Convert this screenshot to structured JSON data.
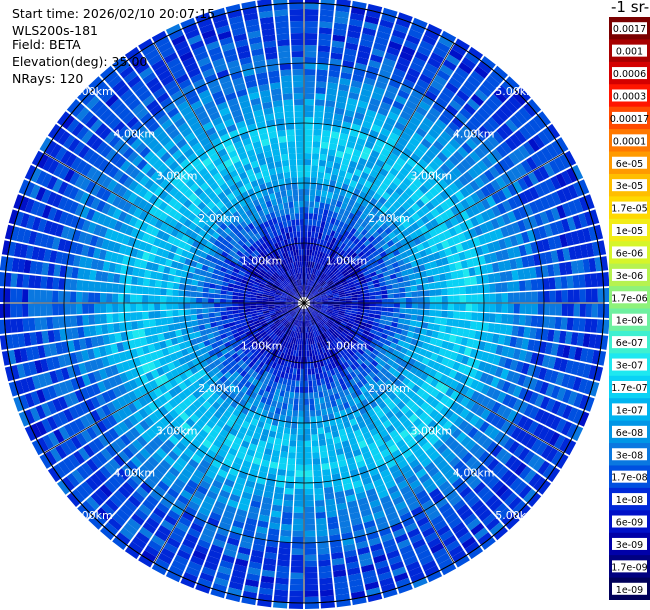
{
  "header": {
    "start_time": "Start time: 2026/02/10 20:07:15",
    "instrument": "WLS200s-181",
    "field": "Field: BETA",
    "elevation": "Elevation(deg): 35.00",
    "nrays": "NRays: 120"
  },
  "colorbar": {
    "title": "-1 sr-",
    "labels": [
      "0.0017",
      "0.001",
      "0.0006",
      "0.0003",
      "0.00017",
      "0.0001",
      "6e-05",
      "3e-05",
      "1.7e-05",
      "1e-05",
      "6e-06",
      "3e-06",
      "1.7e-06",
      "1e-06",
      "6e-07",
      "3e-07",
      "1.7e-07",
      "1e-07",
      "6e-08",
      "3e-08",
      "1.7e-08",
      "1e-08",
      "6e-09",
      "3e-09",
      "1.7e-09",
      "1e-09"
    ],
    "colors": [
      "#7a0000",
      "#a80000",
      "#d40000",
      "#ff1500",
      "#ff4a00",
      "#ff7800",
      "#ff9a00",
      "#ffbe00",
      "#ffd800",
      "#f2ec18",
      "#d6f52a",
      "#b6f250",
      "#8ef27a",
      "#6ef0a0",
      "#3ef0d0",
      "#1ee8f0",
      "#0ad2f5",
      "#00b4f0",
      "#0096e6",
      "#0a78e0",
      "#0050e0",
      "#0028d8",
      "#0010c8",
      "#0000a8",
      "#000080",
      "#00005a"
    ]
  },
  "range_labels": [
    "1.00km",
    "2.00km",
    "3.00km",
    "4.00km",
    "5.00km"
  ],
  "chart_data": {
    "type": "heatmap",
    "projection": "polar (PPI scan)",
    "field": "BETA",
    "elevation_deg": 35.0,
    "n_rays": 120,
    "range_rings_km": [
      1,
      2,
      3,
      4,
      5
    ],
    "max_range_km": 5.0,
    "colorscale": "log",
    "value_range": [
      1e-09,
      0.0017
    ],
    "radial_profile": [
      {
        "range_km": 0.3,
        "log10_beta": -8.3
      },
      {
        "range_km": 1.0,
        "log10_beta": -8.2
      },
      {
        "range_km": 1.6,
        "log10_beta": -7.5
      },
      {
        "range_km": 2.2,
        "log10_beta": -7.0
      },
      {
        "range_km": 2.8,
        "log10_beta": -6.8
      },
      {
        "range_km": 3.2,
        "log10_beta": -7.1
      },
      {
        "range_km": 3.8,
        "log10_beta": -7.5
      },
      {
        "range_km": 4.5,
        "log10_beta": -7.8
      },
      {
        "range_km": 5.0,
        "log10_beta": -7.8
      }
    ]
  }
}
